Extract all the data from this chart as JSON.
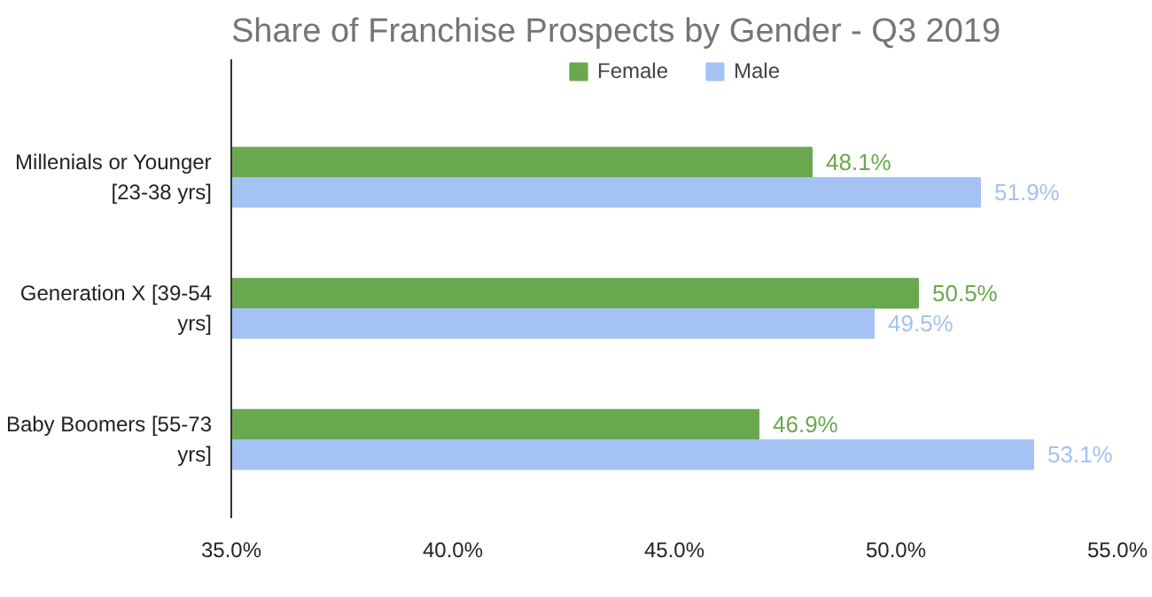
{
  "chart_data": {
    "type": "bar",
    "orientation": "horizontal",
    "title": "Share of Franchise Prospects by Gender - Q3 2019",
    "categories": [
      "Millenials or Younger [23-38 yrs]",
      "Generation X [39-54 yrs]",
      "Baby Boomers [55-73 yrs]"
    ],
    "series": [
      {
        "name": "Female",
        "color": "#6aa84f",
        "values": [
          48.1,
          50.5,
          46.9
        ],
        "value_labels": [
          "48.1%",
          "50.5%",
          "46.9%"
        ]
      },
      {
        "name": "Male",
        "color": "#a4c2f4",
        "values": [
          51.9,
          49.5,
          53.1
        ],
        "value_labels": [
          "51.9%",
          "49.5%",
          "53.1%"
        ]
      }
    ],
    "xlim": [
      35,
      55
    ],
    "xticks": [
      {
        "value": 35,
        "label": "35.0%"
      },
      {
        "value": 40,
        "label": "40.0%"
      },
      {
        "value": 45,
        "label": "45.0%"
      },
      {
        "value": 50,
        "label": "50.0%"
      },
      {
        "value": 55,
        "label": "55.0%"
      }
    ],
    "legend": "top",
    "grid": false
  }
}
